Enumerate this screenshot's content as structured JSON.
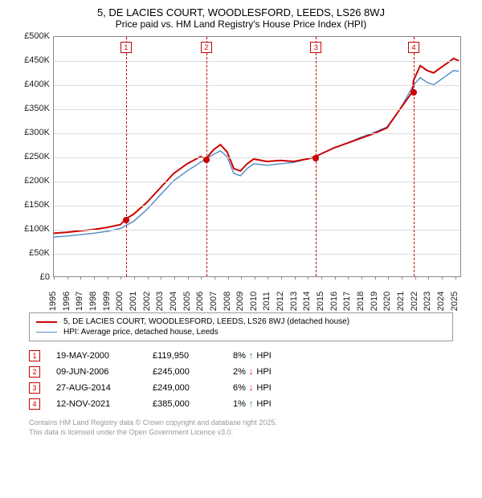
{
  "title": "5, DE LACIES COURT, WOODLESFORD, LEEDS, LS26 8WJ",
  "subtitle": "Price paid vs. HM Land Registry's House Price Index (HPI)",
  "chart": {
    "type": "line",
    "xlim": [
      1995,
      2025.5
    ],
    "ylim": [
      0,
      500000
    ],
    "yticks": [
      0,
      50000,
      100000,
      150000,
      200000,
      250000,
      300000,
      350000,
      400000,
      450000,
      500000
    ],
    "ytick_labels": [
      "£0",
      "£50K",
      "£100K",
      "£150K",
      "£200K",
      "£250K",
      "£300K",
      "£350K",
      "£400K",
      "£450K",
      "£500K"
    ],
    "xticks": [
      1995,
      1996,
      1997,
      1998,
      1999,
      2000,
      2001,
      2002,
      2003,
      2004,
      2005,
      2006,
      2007,
      2008,
      2009,
      2010,
      2011,
      2012,
      2013,
      2014,
      2015,
      2016,
      2017,
      2018,
      2019,
      2020,
      2021,
      2022,
      2023,
      2024,
      2025
    ],
    "grid_color": "#dddddd",
    "background_color": "#ffffff",
    "border_color": "#888888",
    "series": [
      {
        "name": "property",
        "color": "#cc0000",
        "width": 2,
        "points": [
          [
            1995,
            90000
          ],
          [
            1996,
            92000
          ],
          [
            1997,
            95000
          ],
          [
            1998,
            98000
          ],
          [
            1999,
            102000
          ],
          [
            2000,
            108000
          ],
          [
            2000.4,
            119950
          ],
          [
            2001,
            130000
          ],
          [
            2002,
            155000
          ],
          [
            2003,
            185000
          ],
          [
            2004,
            215000
          ],
          [
            2005,
            235000
          ],
          [
            2006,
            250000
          ],
          [
            2006.4,
            245000
          ],
          [
            2007,
            265000
          ],
          [
            2007.5,
            275000
          ],
          [
            2008,
            260000
          ],
          [
            2008.5,
            225000
          ],
          [
            2009,
            220000
          ],
          [
            2009.5,
            235000
          ],
          [
            2010,
            245000
          ],
          [
            2011,
            240000
          ],
          [
            2012,
            242000
          ],
          [
            2013,
            240000
          ],
          [
            2014,
            245000
          ],
          [
            2014.6,
            249000
          ],
          [
            2015,
            255000
          ],
          [
            2016,
            268000
          ],
          [
            2017,
            278000
          ],
          [
            2018,
            288000
          ],
          [
            2019,
            298000
          ],
          [
            2020,
            310000
          ],
          [
            2021,
            350000
          ],
          [
            2021.9,
            385000
          ],
          [
            2022,
            410000
          ],
          [
            2022.5,
            440000
          ],
          [
            2023,
            430000
          ],
          [
            2023.5,
            425000
          ],
          [
            2024,
            435000
          ],
          [
            2024.5,
            445000
          ],
          [
            2025,
            455000
          ],
          [
            2025.4,
            450000
          ]
        ]
      },
      {
        "name": "hpi",
        "color": "#5b8fc7",
        "width": 1.5,
        "points": [
          [
            1995,
            82000
          ],
          [
            1996,
            84000
          ],
          [
            1997,
            87000
          ],
          [
            1998,
            90000
          ],
          [
            1999,
            94000
          ],
          [
            2000,
            100000
          ],
          [
            2001,
            115000
          ],
          [
            2002,
            140000
          ],
          [
            2003,
            170000
          ],
          [
            2004,
            200000
          ],
          [
            2005,
            220000
          ],
          [
            2006,
            238000
          ],
          [
            2007,
            255000
          ],
          [
            2007.5,
            262000
          ],
          [
            2008,
            250000
          ],
          [
            2008.5,
            215000
          ],
          [
            2009,
            210000
          ],
          [
            2009.5,
            225000
          ],
          [
            2010,
            235000
          ],
          [
            2011,
            232000
          ],
          [
            2012,
            235000
          ],
          [
            2013,
            238000
          ],
          [
            2014,
            245000
          ],
          [
            2015,
            255000
          ],
          [
            2016,
            268000
          ],
          [
            2017,
            278000
          ],
          [
            2018,
            290000
          ],
          [
            2019,
            300000
          ],
          [
            2020,
            312000
          ],
          [
            2021,
            350000
          ],
          [
            2022,
            400000
          ],
          [
            2022.5,
            415000
          ],
          [
            2023,
            405000
          ],
          [
            2023.5,
            400000
          ],
          [
            2024,
            410000
          ],
          [
            2024.5,
            420000
          ],
          [
            2025,
            430000
          ],
          [
            2025.4,
            428000
          ]
        ]
      }
    ],
    "event_lines": [
      {
        "x": 2000.4,
        "label": "1"
      },
      {
        "x": 2006.4,
        "label": "2"
      },
      {
        "x": 2014.6,
        "label": "3"
      },
      {
        "x": 2021.9,
        "label": "4"
      }
    ],
    "sale_points": [
      {
        "x": 2000.4,
        "y": 119950
      },
      {
        "x": 2006.4,
        "y": 245000
      },
      {
        "x": 2014.6,
        "y": 249000
      },
      {
        "x": 2021.9,
        "y": 385000
      }
    ]
  },
  "legend": [
    {
      "color": "#cc0000",
      "width": 2,
      "label": "5, DE LACIES COURT, WOODLESFORD, LEEDS, LS26 8WJ (detached house)"
    },
    {
      "color": "#5b8fc7",
      "width": 1.5,
      "label": "HPI: Average price, detached house, Leeds"
    }
  ],
  "sales": [
    {
      "n": "1",
      "date": "19-MAY-2000",
      "price": "£119,950",
      "diff": "8%",
      "arrow": "↑",
      "arrow_color": "#1a8f1a",
      "suffix": "HPI"
    },
    {
      "n": "2",
      "date": "09-JUN-2006",
      "price": "£245,000",
      "diff": "2%",
      "arrow": "↓",
      "arrow_color": "#cc0000",
      "suffix": "HPI"
    },
    {
      "n": "3",
      "date": "27-AUG-2014",
      "price": "£249,000",
      "diff": "6%",
      "arrow": "↓",
      "arrow_color": "#cc0000",
      "suffix": "HPI"
    },
    {
      "n": "4",
      "date": "12-NOV-2021",
      "price": "£385,000",
      "diff": "1%",
      "arrow": "↑",
      "arrow_color": "#1a8f1a",
      "suffix": "HPI"
    }
  ],
  "footer1": "Contains HM Land Registry data © Crown copyright and database right 2025.",
  "footer2": "This data is licensed under the Open Government Licence v3.0."
}
